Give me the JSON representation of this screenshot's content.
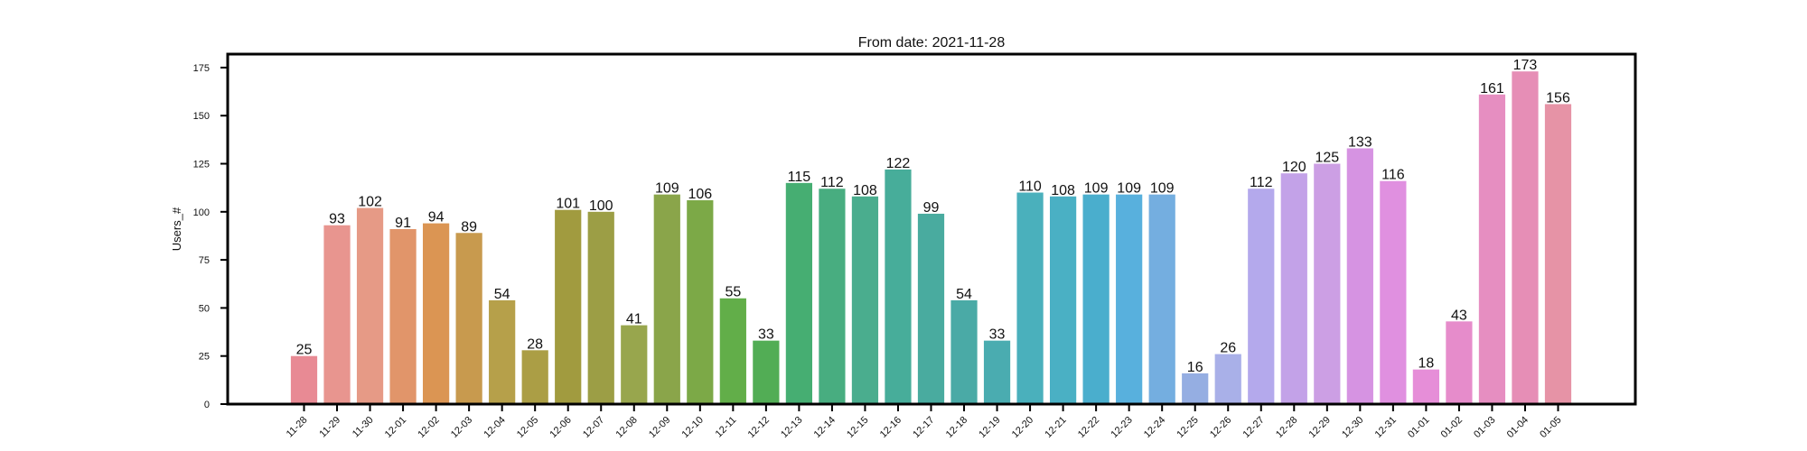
{
  "chart_data": {
    "type": "bar",
    "title": "From date: 2021-11-28",
    "xlabel": "",
    "ylabel": "Users_#",
    "ylim": [
      0,
      182
    ],
    "yticks": [
      0,
      25,
      50,
      75,
      100,
      125,
      150,
      175
    ],
    "categories": [
      "11-28",
      "11-29",
      "11-30",
      "12-01",
      "12-02",
      "12-03",
      "12-04",
      "12-05",
      "12-06",
      "12-07",
      "12-08",
      "12-09",
      "12-10",
      "12-11",
      "12-12",
      "12-13",
      "12-14",
      "12-15",
      "12-16",
      "12-17",
      "12-18",
      "12-19",
      "12-20",
      "12-21",
      "12-22",
      "12-23",
      "12-24",
      "12-25",
      "12-26",
      "12-27",
      "12-28",
      "12-29",
      "12-30",
      "12-31",
      "01-01",
      "01-02",
      "01-03",
      "01-04",
      "01-05"
    ],
    "values": [
      25,
      93,
      102,
      91,
      94,
      89,
      54,
      28,
      101,
      100,
      41,
      109,
      106,
      55,
      33,
      115,
      112,
      108,
      122,
      99,
      54,
      33,
      110,
      108,
      109,
      109,
      109,
      16,
      26,
      112,
      120,
      125,
      133,
      116,
      18,
      43,
      161,
      173,
      156
    ],
    "colors": [
      "#e88a94",
      "#e8958f",
      "#e69a86",
      "#e1956a",
      "#db9553",
      "#c89a4e",
      "#b6a04a",
      "#ab9e45",
      "#a19b3f",
      "#9c9e45",
      "#98a64d",
      "#8aa54a",
      "#7ca947",
      "#62ae49",
      "#52ad55",
      "#46ae72",
      "#48ad80",
      "#4aad8e",
      "#47ad9a",
      "#49ab9f",
      "#4aaaa6",
      "#4aacb0",
      "#4ab0bc",
      "#4ab0c4",
      "#4aaecd",
      "#58b0dd",
      "#74aee0",
      "#95aee2",
      "#a9b0e8",
      "#b4a9ec",
      "#c3a2e8",
      "#cc9fe4",
      "#d693e2",
      "#e090e0",
      "#e68ed8",
      "#e68ccb",
      "#e68ec1",
      "#e68eb6",
      "#e693a6"
    ],
    "grid": false,
    "legend": "none"
  }
}
